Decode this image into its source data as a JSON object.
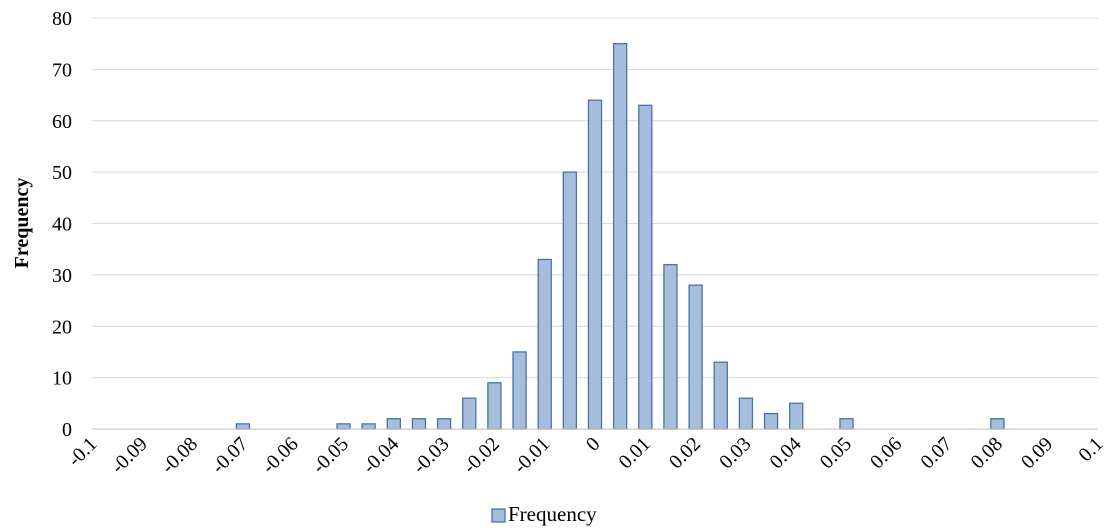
{
  "chart_data": {
    "type": "bar",
    "title": "",
    "xlabel": "",
    "ylabel": "Frequency",
    "ylim": [
      0,
      80
    ],
    "yticks": [
      0,
      10,
      20,
      30,
      40,
      50,
      60,
      70,
      80
    ],
    "grid": true,
    "legend_position": "bottom",
    "bar_color": "#a6bddb",
    "bar_edge_color": "#4a73a8",
    "x_tick_labels": [
      "-0.1",
      "-0.09",
      "-0.08",
      "-0.07",
      "-0.06",
      "-0.05",
      "-0.04",
      "-0.03",
      "-0.02",
      "-0.01",
      "0",
      "0.01",
      "0.02",
      "0.03",
      "0.04",
      "0.05",
      "0.06",
      "0.07",
      "0.08",
      "0.09",
      "0.1"
    ],
    "bin_centers": [
      -0.1,
      -0.095,
      -0.09,
      -0.085,
      -0.08,
      -0.075,
      -0.07,
      -0.065,
      -0.06,
      -0.055,
      -0.05,
      -0.045,
      -0.04,
      -0.035,
      -0.03,
      -0.025,
      -0.02,
      -0.015,
      -0.01,
      -0.005,
      0,
      0.005,
      0.01,
      0.015,
      0.02,
      0.025,
      0.03,
      0.035,
      0.04,
      0.045,
      0.05,
      0.055,
      0.06,
      0.065,
      0.07,
      0.075,
      0.08,
      0.085,
      0.09,
      0.095,
      0.1
    ],
    "series": [
      {
        "name": "Frequency",
        "values": [
          0,
          0,
          0,
          0,
          0,
          0,
          1,
          0,
          0,
          0,
          1,
          1,
          2,
          2,
          2,
          6,
          9,
          15,
          33,
          50,
          64,
          75,
          63,
          32,
          28,
          13,
          6,
          3,
          5,
          0,
          2,
          0,
          0,
          0,
          0,
          0,
          2,
          0,
          0,
          0,
          0
        ]
      }
    ]
  }
}
